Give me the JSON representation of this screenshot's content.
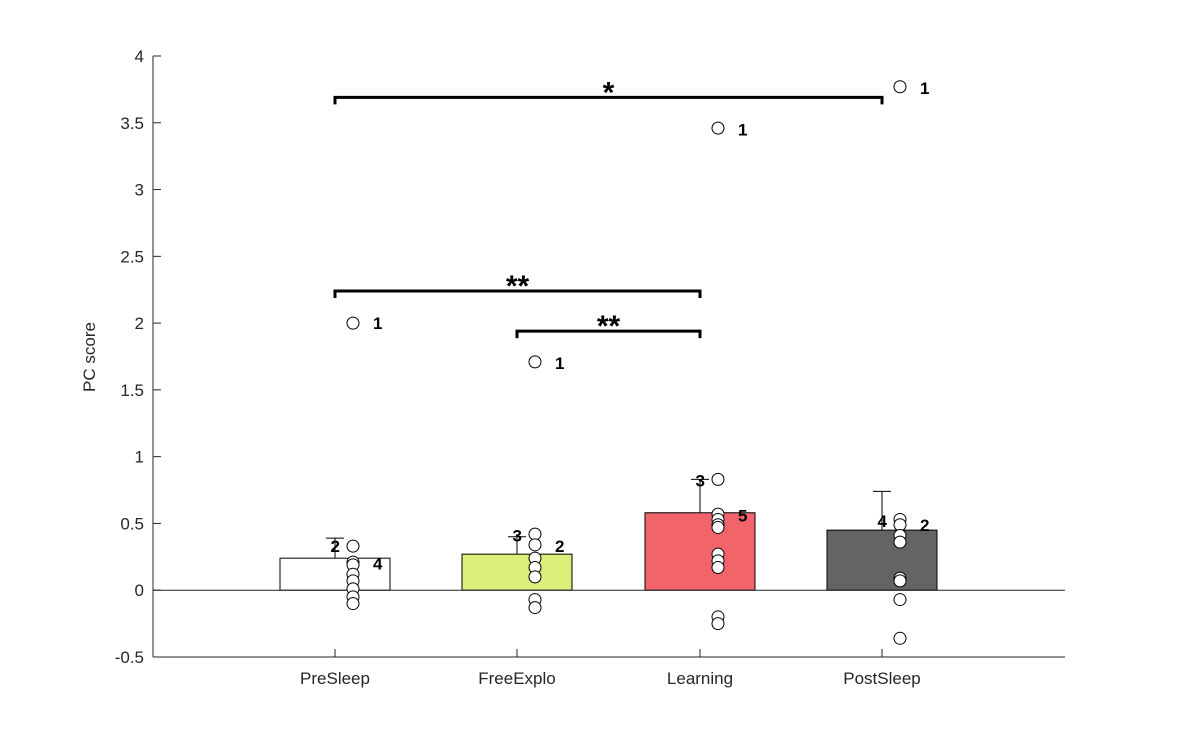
{
  "chart_data": {
    "type": "bar",
    "title": "",
    "xlabel": "",
    "ylabel": "PC score",
    "ylim": [
      -0.5,
      4
    ],
    "yticks": [
      -0.5,
      0,
      0.5,
      1,
      1.5,
      2,
      2.5,
      3,
      3.5,
      4
    ],
    "ytick_labels": [
      "-0.5",
      "0",
      "0.5",
      "1",
      "1.5",
      "2",
      "2.5",
      "3",
      "3.5",
      "4"
    ],
    "grid": false,
    "categories": [
      "PreSleep",
      "FreeExplo",
      "Learning",
      "PostSleep"
    ],
    "values": [
      0.24,
      0.27,
      0.58,
      0.45
    ],
    "error_upper": [
      0.39,
      0.4,
      0.83,
      0.74
    ],
    "bar_colors": [
      "#ffffff",
      "#dced7a",
      "#f0646a",
      "#646464"
    ],
    "points": [
      [
        0.33,
        0.21,
        0.19,
        0.12,
        0.07,
        0.01,
        -0.05,
        -0.1,
        2.0
      ],
      [
        0.42,
        0.34,
        0.24,
        0.17,
        0.1,
        -0.07,
        -0.13,
        1.71
      ],
      [
        0.83,
        0.57,
        0.53,
        0.49,
        0.47,
        0.27,
        0.22,
        0.17,
        -0.2,
        -0.25,
        3.46
      ],
      [
        0.53,
        0.49,
        0.41,
        0.36,
        0.09,
        0.07,
        -0.07,
        -0.36,
        3.77
      ]
    ],
    "point_annotations": [
      {
        "category": 0,
        "y": 0.33,
        "side": "left",
        "text": "2"
      },
      {
        "category": 0,
        "y": 0.2,
        "side": "right",
        "text": "4"
      },
      {
        "category": 0,
        "y": 2.0,
        "side": "right",
        "text": "1"
      },
      {
        "category": 1,
        "y": 0.41,
        "side": "left",
        "text": "3"
      },
      {
        "category": 1,
        "y": 0.33,
        "side": "right",
        "text": "2"
      },
      {
        "category": 1,
        "y": 1.7,
        "side": "right",
        "text": "1"
      },
      {
        "category": 2,
        "y": 0.82,
        "side": "left",
        "text": "3"
      },
      {
        "category": 2,
        "y": 0.56,
        "side": "right",
        "text": "5"
      },
      {
        "category": 2,
        "y": 3.45,
        "side": "right",
        "text": "1"
      },
      {
        "category": 3,
        "y": 0.52,
        "side": "left",
        "text": "4"
      },
      {
        "category": 3,
        "y": 0.49,
        "side": "right",
        "text": "2"
      },
      {
        "category": 3,
        "y": 3.76,
        "side": "right",
        "text": "1"
      }
    ],
    "significance": [
      {
        "from": 0,
        "to": 3,
        "y": 3.69,
        "label": "*"
      },
      {
        "from": 0,
        "to": 2,
        "y": 2.24,
        "label": "**"
      },
      {
        "from": 1,
        "to": 2,
        "y": 1.94,
        "label": "**"
      }
    ]
  }
}
